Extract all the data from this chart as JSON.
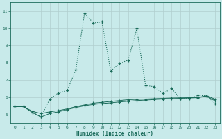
{
  "xlabel": "Humidex (Indice chaleur)",
  "bg_color": "#c8eaea",
  "grid_color": "#b0cece",
  "line_color": "#1a6b5a",
  "xlim": [
    -0.5,
    23.5
  ],
  "ylim": [
    4.5,
    11.5
  ],
  "xticks": [
    0,
    1,
    2,
    3,
    4,
    5,
    6,
    7,
    8,
    9,
    10,
    11,
    12,
    13,
    14,
    15,
    16,
    17,
    18,
    19,
    20,
    21,
    22,
    23
  ],
  "yticks": [
    5,
    6,
    7,
    8,
    9,
    10,
    11
  ],
  "curve1_x": [
    0,
    1,
    2,
    3,
    4,
    5,
    6,
    7,
    8,
    9,
    10,
    11,
    12,
    13,
    14,
    15,
    16,
    17,
    18,
    19,
    20,
    21,
    22,
    23
  ],
  "curve1_y": [
    5.45,
    5.45,
    5.12,
    4.85,
    5.05,
    5.15,
    5.28,
    5.4,
    5.5,
    5.58,
    5.63,
    5.67,
    5.72,
    5.76,
    5.8,
    5.83,
    5.86,
    5.89,
    5.91,
    5.93,
    5.95,
    5.97,
    6.05,
    5.78
  ],
  "curve2_x": [
    0,
    1,
    2,
    3,
    4,
    5,
    6,
    7,
    8,
    9,
    10,
    11,
    12,
    13,
    14,
    15,
    16,
    17,
    18,
    19,
    20,
    21,
    22,
    23
  ],
  "curve2_y": [
    5.45,
    5.45,
    5.18,
    5.05,
    5.15,
    5.22,
    5.32,
    5.45,
    5.55,
    5.65,
    5.7,
    5.75,
    5.8,
    5.85,
    5.87,
    5.89,
    5.91,
    5.93,
    5.95,
    5.96,
    5.97,
    5.98,
    6.08,
    5.88
  ],
  "curve3_x": [
    0,
    1,
    2,
    3,
    4,
    5,
    6,
    7,
    8,
    9,
    10,
    11,
    12,
    13,
    14,
    15,
    16,
    17,
    18,
    19,
    20,
    21,
    22,
    23
  ],
  "curve3_y": [
    5.45,
    5.45,
    5.12,
    4.85,
    5.88,
    6.25,
    6.38,
    7.6,
    10.88,
    10.3,
    10.38,
    7.52,
    7.95,
    8.15,
    9.98,
    6.68,
    6.6,
    6.22,
    6.5,
    5.9,
    5.93,
    6.1,
    6.08,
    5.62
  ]
}
